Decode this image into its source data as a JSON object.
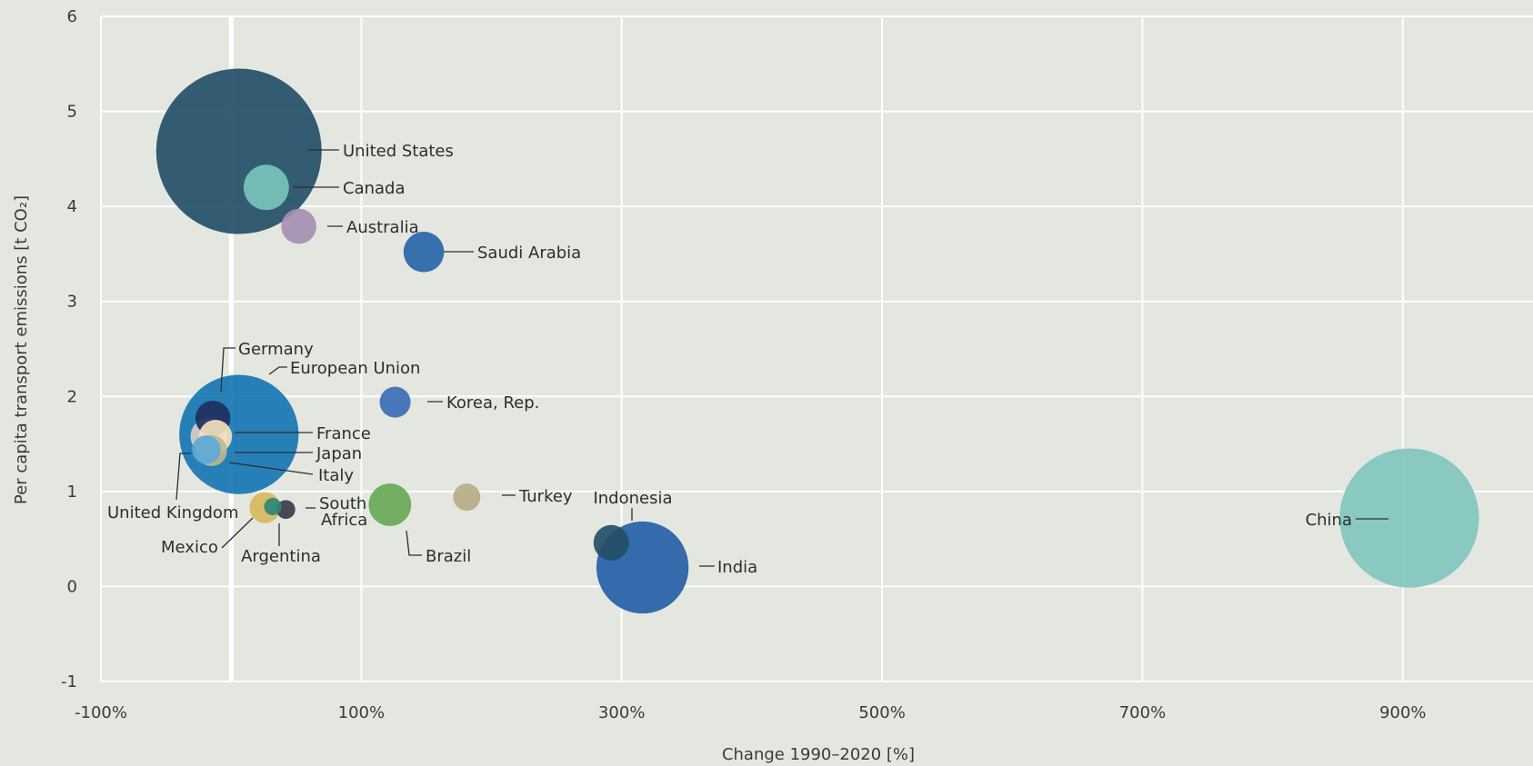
{
  "chart_data": {
    "type": "scatter",
    "subtype": "bubble",
    "title": "",
    "xlabel": "Change 1990–2020 [%]",
    "ylabel": "Per capita transport emissions [t CO₂]",
    "xlim": [
      -100,
      1000
    ],
    "ylim": [
      -1,
      6
    ],
    "x_ticks": [
      -100,
      100,
      300,
      500,
      700,
      900
    ],
    "x_tick_labels": [
      "-100%",
      "100%",
      "300%",
      "500%",
      "700%",
      "900%"
    ],
    "y_ticks": [
      -1,
      0,
      1,
      2,
      3,
      4,
      5,
      6
    ],
    "y_tick_labels": [
      "-1",
      "0",
      "1",
      "2",
      "3",
      "4",
      "5",
      "6"
    ],
    "grid": true,
    "reference_line_x": 0,
    "points": [
      {
        "name": "United States",
        "x": 6,
        "y": 4.58,
        "size": 1.0,
        "color": "#244f67"
      },
      {
        "name": "European Union",
        "x": 6,
        "y": 1.6,
        "size": 0.52,
        "color": "#1677b3"
      },
      {
        "name": "China",
        "x": 905,
        "y": 0.72,
        "size": 0.71,
        "color": "#82c5bf"
      },
      {
        "name": "India",
        "x": 316,
        "y": 0.2,
        "size": 0.31,
        "color": "#2660a8"
      },
      {
        "name": "Canada",
        "x": 27,
        "y": 4.2,
        "size": 0.075,
        "color": "#78c4bc"
      },
      {
        "name": "Australia",
        "x": 52,
        "y": 3.79,
        "size": 0.045,
        "color": "#a58fb1"
      },
      {
        "name": "Saudi Arabia",
        "x": 148,
        "y": 3.52,
        "size": 0.06,
        "color": "#2966a9"
      },
      {
        "name": "Germany",
        "x": -14,
        "y": 1.77,
        "size": 0.045,
        "color": "#202f5e"
      },
      {
        "name": "France",
        "x": -12,
        "y": 1.58,
        "size": 0.04,
        "color": "#f2e0bf"
      },
      {
        "name": "Japan",
        "x": -17,
        "y": 1.58,
        "size": 0.05,
        "color": "#d8ccc4"
      },
      {
        "name": "Italy",
        "x": -15,
        "y": 1.43,
        "size": 0.035,
        "color": "#bfb78f"
      },
      {
        "name": "United Kingdom",
        "x": -19,
        "y": 1.44,
        "size": 0.03,
        "color": "#5fa8d7"
      },
      {
        "name": "Korea, Rep.",
        "x": 126,
        "y": 1.94,
        "size": 0.035,
        "color": "#3c6fb6"
      },
      {
        "name": "Turkey",
        "x": 181,
        "y": 0.94,
        "size": 0.027,
        "color": "#b7ac86"
      },
      {
        "name": "Brazil",
        "x": 122,
        "y": 0.86,
        "size": 0.066,
        "color": "#68a957"
      },
      {
        "name": "Indonesia",
        "x": 292,
        "y": 0.46,
        "size": 0.046,
        "color": "#244f67"
      },
      {
        "name": "Mexico",
        "x": 26,
        "y": 0.83,
        "size": 0.035,
        "color": "#d7b95c"
      },
      {
        "name": "Argentina",
        "x": 32,
        "y": 0.84,
        "size": 0.011,
        "color": "#2b8776"
      },
      {
        "name": "South Africa",
        "x": 42,
        "y": 0.81,
        "size": 0.013,
        "color": "#3b3c4a"
      }
    ]
  }
}
